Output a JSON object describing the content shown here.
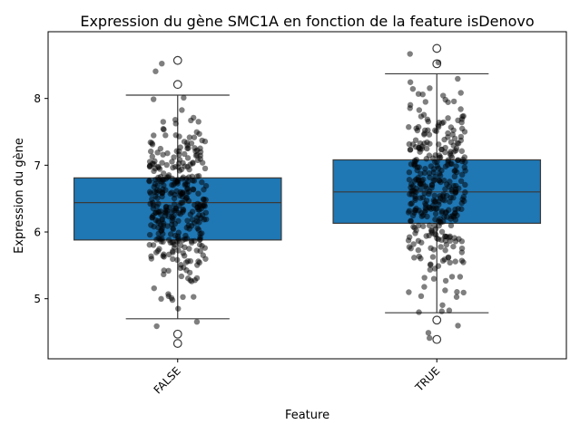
{
  "chart_data": {
    "type": "box",
    "title": "Expression du gène SMC1A en fonction de la feature isDenovo",
    "xlabel": "Feature",
    "ylabel": "Expression du gène",
    "categories": [
      "FALSE",
      "TRUE"
    ],
    "ylim": [
      4.1,
      9.0
    ],
    "yticks": [
      5,
      6,
      7,
      8
    ],
    "grid": false,
    "box_color": "#1f77b4",
    "point_color": "#000000",
    "boxes": [
      {
        "category": "FALSE",
        "q1": 5.88,
        "median": 6.44,
        "q3": 6.81,
        "whisker_low": 4.7,
        "whisker_high": 8.05,
        "outliers": [
          8.57,
          8.21,
          4.47,
          4.33
        ],
        "n_points": 360,
        "points_range": [
          4.3,
          8.57
        ]
      },
      {
        "category": "TRUE",
        "q1": 6.13,
        "median": 6.6,
        "q3": 7.08,
        "whisker_low": 4.79,
        "whisker_high": 8.37,
        "outliers": [
          8.75,
          8.52,
          4.68,
          4.39
        ],
        "n_points": 360,
        "points_range": [
          4.39,
          8.75
        ]
      }
    ]
  }
}
